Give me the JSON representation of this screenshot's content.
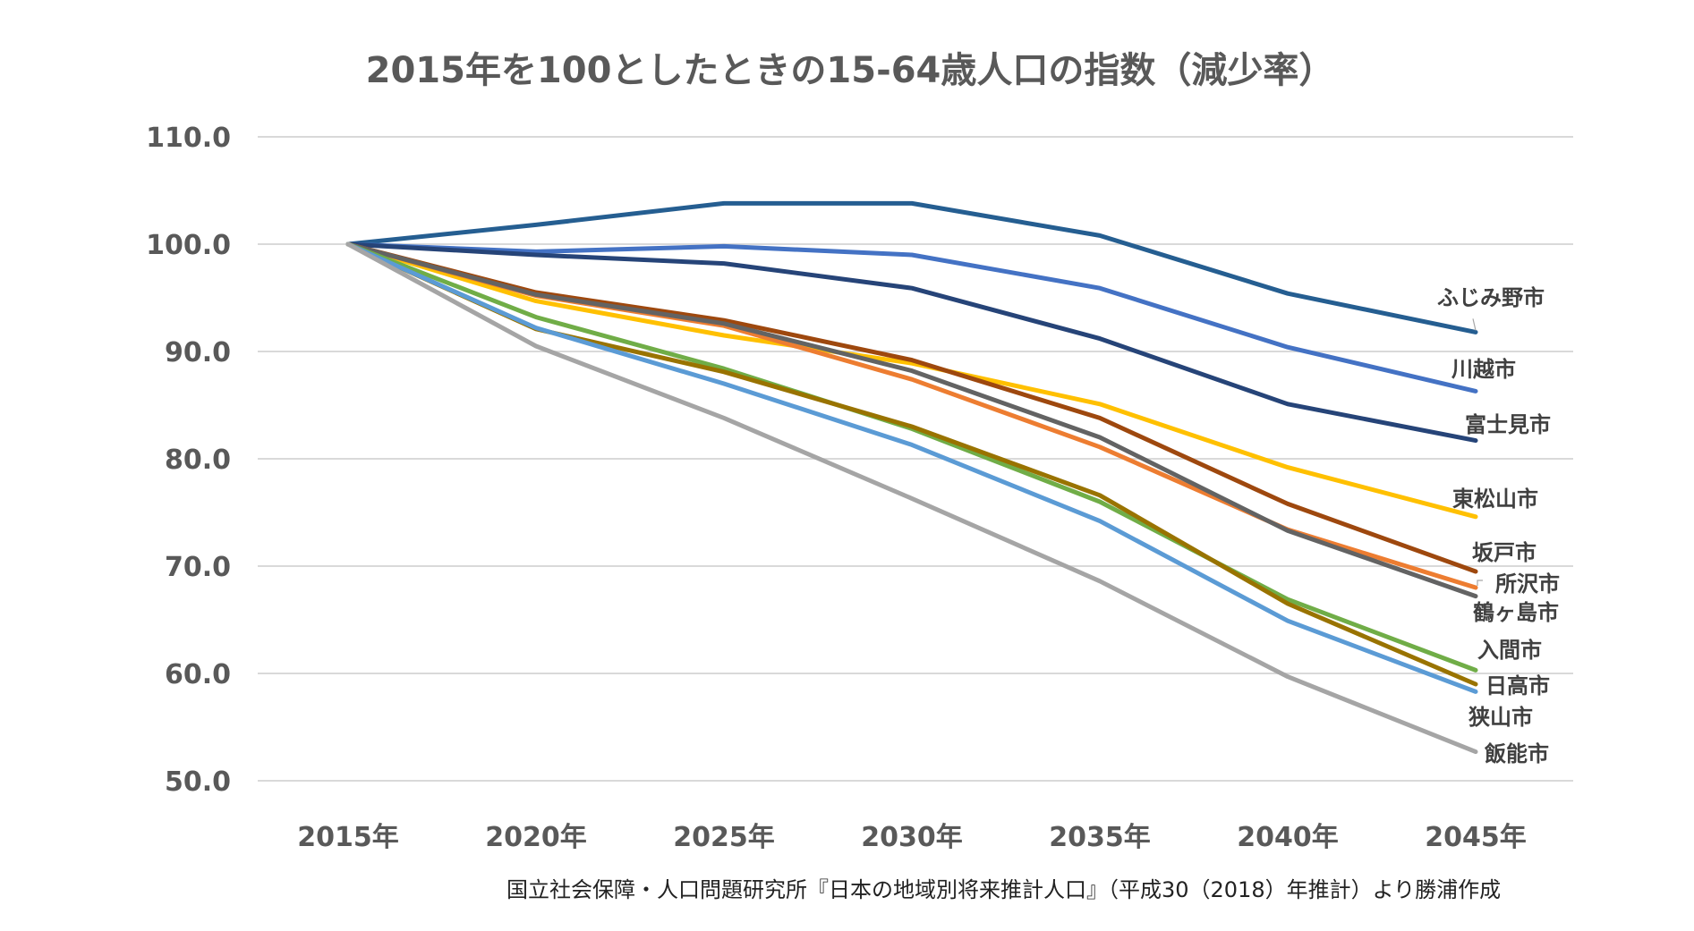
{
  "chart_data": {
    "type": "line",
    "title": "2015年を100としたときの15-64歳人口の指数（減少率）",
    "xlabel": "",
    "ylabel": "",
    "categories": [
      "2015年",
      "2020年",
      "2025年",
      "2030年",
      "2035年",
      "2040年",
      "2045年"
    ],
    "ylim": [
      50,
      110
    ],
    "yticks": [
      110,
      100,
      90,
      80,
      70,
      60,
      50
    ],
    "ytick_labels": [
      "110.0",
      "100.0",
      "90.0",
      "80.0",
      "70.0",
      "60.0",
      "50.0"
    ],
    "grid": true,
    "legend": "none (series labels at line ends, right)",
    "series": [
      {
        "name": "ふじみ野市",
        "color": "#255E91",
        "values": [
          100,
          101.8,
          103.8,
          103.8,
          100.8,
          95.4,
          91.8
        ]
      },
      {
        "name": "川越市",
        "color": "#4472C4",
        "values": [
          100,
          99.3,
          99.8,
          99.0,
          95.9,
          90.4,
          86.3
        ]
      },
      {
        "name": "富士見市",
        "color": "#264478",
        "values": [
          100,
          99.0,
          98.2,
          95.9,
          91.2,
          85.1,
          81.7
        ]
      },
      {
        "name": "東松山市",
        "color": "#FFC000",
        "values": [
          100,
          94.7,
          91.5,
          88.9,
          85.1,
          79.2,
          74.6
        ]
      },
      {
        "name": "坂戸市",
        "color": "#9E480E",
        "values": [
          100,
          95.5,
          92.9,
          89.2,
          83.8,
          75.8,
          69.5
        ]
      },
      {
        "name": "所沢市",
        "color": "#ED7D31",
        "values": [
          100,
          95.2,
          92.4,
          87.4,
          81.1,
          73.4,
          68.0
        ]
      },
      {
        "name": "鶴ヶ島市",
        "color": "#636363",
        "values": [
          100,
          95.3,
          92.6,
          88.2,
          82.0,
          73.3,
          67.2
        ]
      },
      {
        "name": "入間市",
        "color": "#70AD47",
        "values": [
          100,
          93.2,
          88.4,
          82.8,
          76.0,
          66.9,
          60.3
        ]
      },
      {
        "name": "日高市",
        "color": "#997300",
        "values": [
          100,
          92.1,
          88.1,
          83.0,
          76.6,
          66.5,
          59.0
        ]
      },
      {
        "name": "狭山市",
        "color": "#5B9BD5",
        "values": [
          100,
          92.2,
          87.0,
          81.3,
          74.2,
          64.9,
          58.3
        ]
      },
      {
        "name": "飯能市",
        "color": "#A5A5A5",
        "values": [
          100,
          90.5,
          83.8,
          76.3,
          68.6,
          59.7,
          52.7
        ]
      }
    ]
  },
  "footer": {
    "source": "国立社会保障・人口問題研究所『日本の地域別将来推計人口』（平成30（2018）年推計）より勝浦作成"
  }
}
